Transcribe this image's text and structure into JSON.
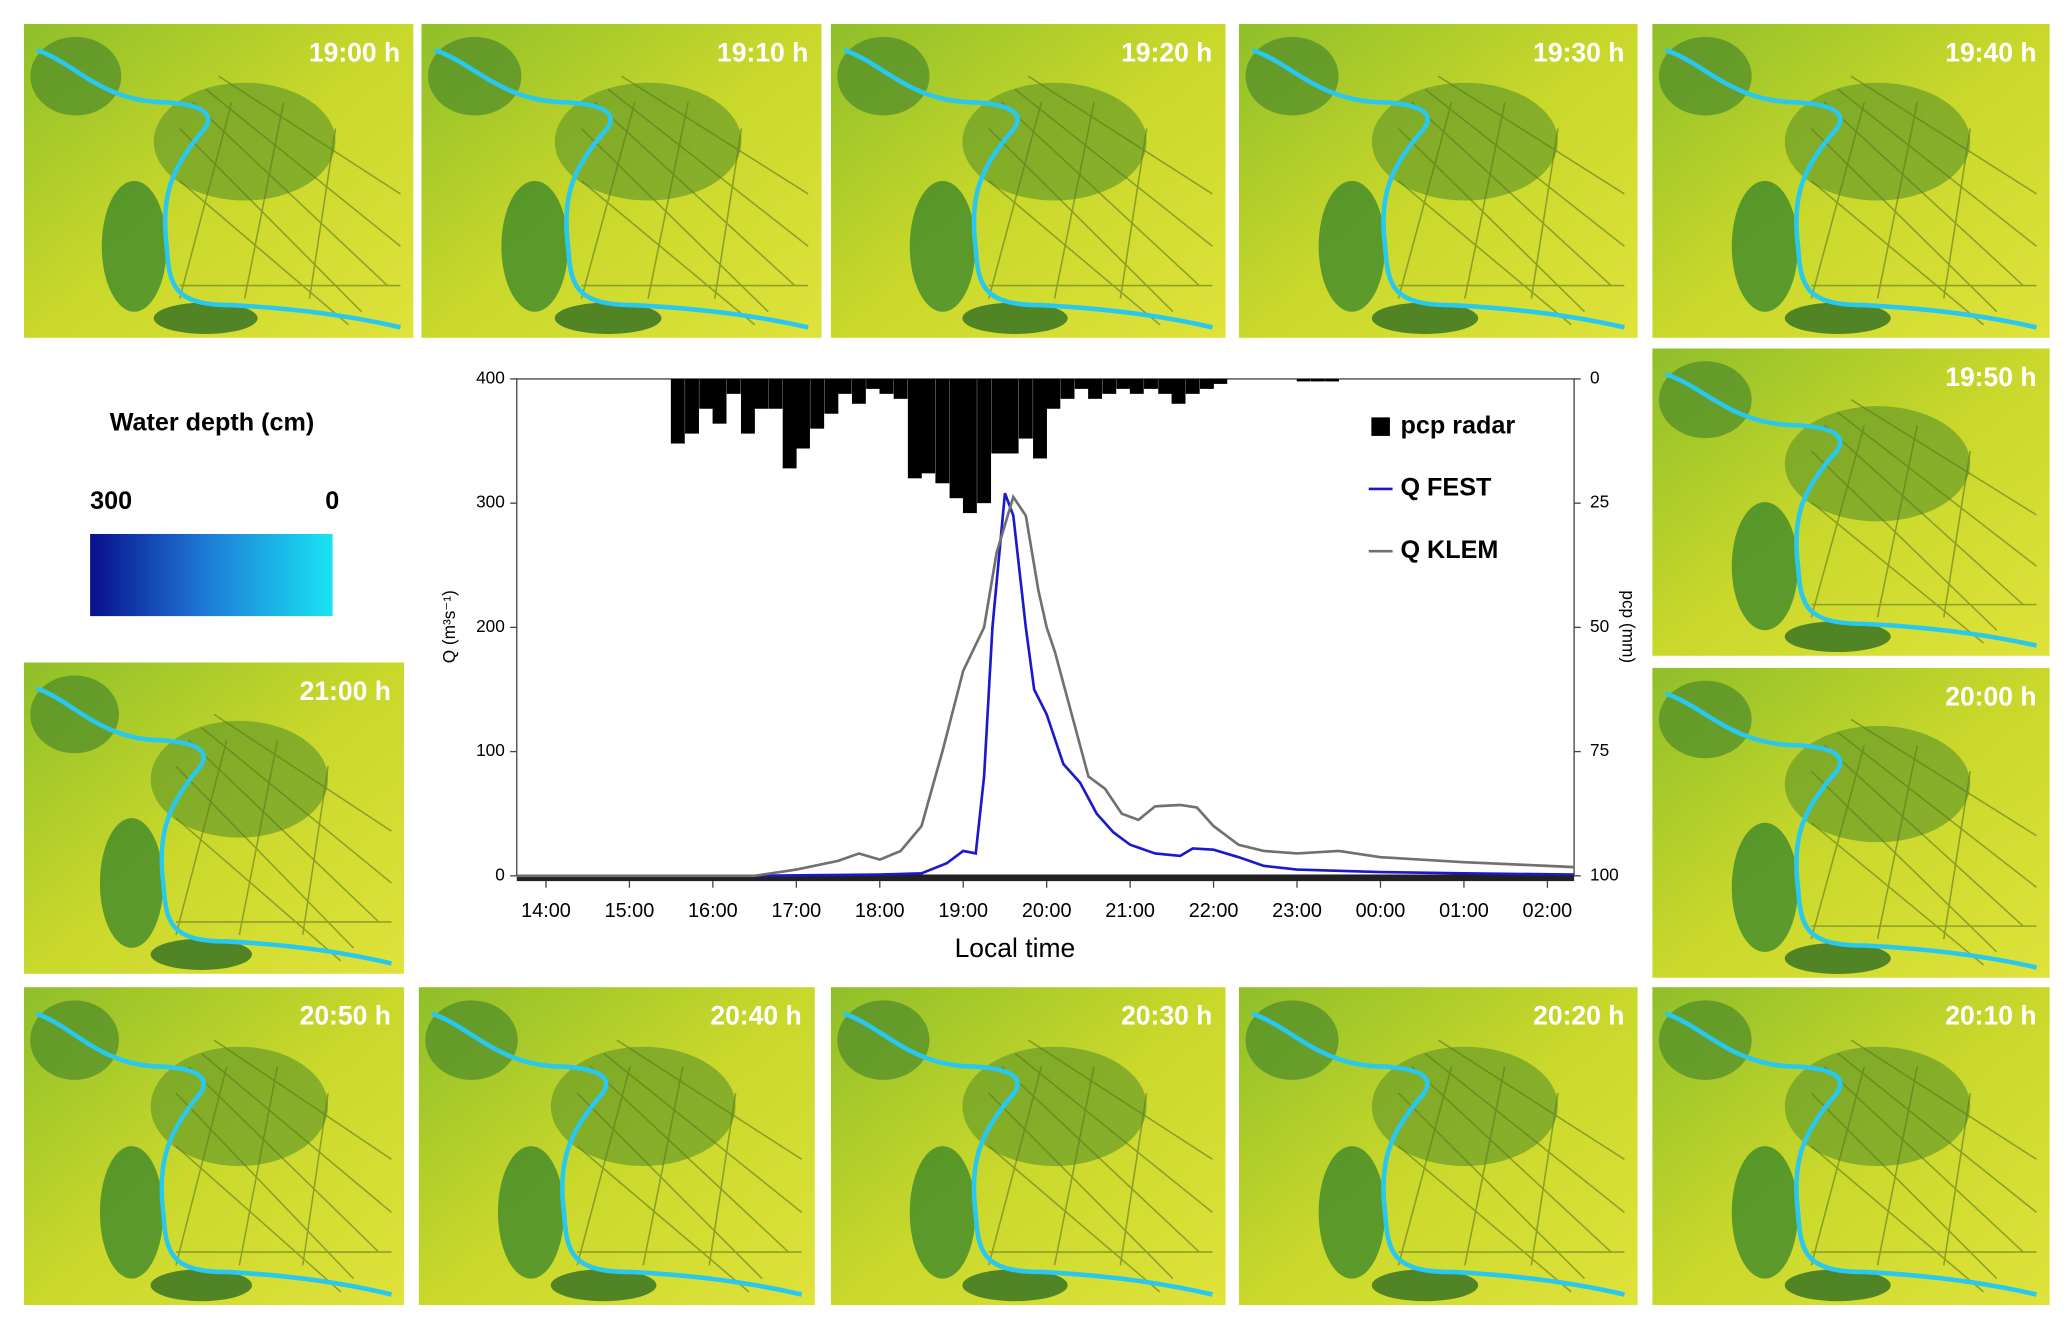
{
  "panels": [
    {
      "label": "19:00 h"
    },
    {
      "label": "19:10 h"
    },
    {
      "label": "19:20 h"
    },
    {
      "label": "19:30 h"
    },
    {
      "label": "19:40 h"
    },
    {
      "label": "19:50 h"
    },
    {
      "label": "20:00 h"
    },
    {
      "label": "20:10 h"
    },
    {
      "label": "20:20 h"
    },
    {
      "label": "20:30 h"
    },
    {
      "label": "20:40 h"
    },
    {
      "label": "20:50 h"
    },
    {
      "label": "21:00 h"
    }
  ],
  "colorbar": {
    "title": "Water depth (cm)",
    "max": 300,
    "min": 0
  },
  "chart_data": {
    "type": "line",
    "x_label": "Local time",
    "y_label": "Q (m³s⁻¹)",
    "y2_label": "pcp (mm)",
    "xlim": [
      13.65,
      26.32
    ],
    "xticks": [
      {
        "value": 14,
        "label": "14:00"
      },
      {
        "value": 15,
        "label": "15:00"
      },
      {
        "value": 16,
        "label": "16:00"
      },
      {
        "value": 17,
        "label": "17:00"
      },
      {
        "value": 18,
        "label": "18:00"
      },
      {
        "value": 19,
        "label": "19:00"
      },
      {
        "value": 20,
        "label": "20:00"
      },
      {
        "value": 21,
        "label": "21:00"
      },
      {
        "value": 22,
        "label": "22:00"
      },
      {
        "value": 23,
        "label": "23:00"
      },
      {
        "value": 24,
        "label": "00:00"
      },
      {
        "value": 25,
        "label": "01:00"
      },
      {
        "value": 26,
        "label": "02:00"
      }
    ],
    "ylim": [
      0,
      400
    ],
    "yticks": [
      0,
      100,
      200,
      300,
      400
    ],
    "y2lim": [
      100,
      0
    ],
    "y2ticks": [
      0,
      25,
      50,
      75,
      100
    ],
    "legend": "upper right",
    "series": [
      {
        "name": "pcp radar",
        "type": "bar",
        "axis": "y2",
        "color": "#000000",
        "x": [
          15.58,
          15.75,
          15.92,
          16.08,
          16.25,
          16.42,
          16.58,
          16.75,
          16.92,
          17.08,
          17.25,
          17.42,
          17.58,
          17.75,
          17.92,
          18.08,
          18.25,
          18.42,
          18.58,
          18.75,
          18.92,
          19.08,
          19.25,
          19.42,
          19.58,
          19.75,
          19.92,
          20.08,
          20.25,
          20.42,
          20.58,
          20.75,
          20.92,
          21.08,
          21.25,
          21.42,
          21.58,
          21.75,
          21.92,
          22.08,
          23.08,
          23.25,
          23.42
        ],
        "values": [
          13,
          11,
          6,
          9,
          3,
          11,
          6,
          6,
          18,
          14,
          10,
          7,
          3,
          5,
          2,
          3,
          4,
          20,
          19,
          21,
          24,
          27,
          25,
          15,
          15,
          12,
          16,
          6,
          4,
          2,
          4,
          3,
          2,
          3,
          2,
          3,
          5,
          3,
          2,
          1,
          0.5,
          0.5,
          0.5
        ]
      },
      {
        "name": "Q FEST",
        "type": "line",
        "color": "#1a1acc",
        "x": [
          13.65,
          16.5,
          18.0,
          18.5,
          18.8,
          19.0,
          19.15,
          19.25,
          19.35,
          19.5,
          19.6,
          19.75,
          19.85,
          20.0,
          20.2,
          20.4,
          20.6,
          20.8,
          21.0,
          21.3,
          21.6,
          21.75,
          22.0,
          22.3,
          22.6,
          23.0,
          24.0,
          25.0,
          26.32
        ],
        "values": [
          0,
          0,
          1,
          2,
          10,
          20,
          18,
          80,
          200,
          308,
          290,
          200,
          150,
          130,
          90,
          75,
          50,
          35,
          25,
          18,
          16,
          22,
          21,
          15,
          8,
          5,
          3,
          2,
          1
        ]
      },
      {
        "name": "Q KLEM",
        "type": "line",
        "color": "#707070",
        "x": [
          13.65,
          16.5,
          17.0,
          17.5,
          17.75,
          18.0,
          18.25,
          18.5,
          18.75,
          19.0,
          19.25,
          19.4,
          19.6,
          19.75,
          19.9,
          20.0,
          20.1,
          20.3,
          20.5,
          20.7,
          20.9,
          21.1,
          21.3,
          21.6,
          21.8,
          22.0,
          22.3,
          22.6,
          23.0,
          23.5,
          24.0,
          25.0,
          26.0,
          26.32
        ],
        "values": [
          0,
          0,
          5,
          12,
          18,
          13,
          20,
          40,
          100,
          165,
          200,
          260,
          305,
          290,
          230,
          200,
          180,
          130,
          80,
          70,
          50,
          45,
          56,
          57,
          55,
          40,
          25,
          20,
          18,
          20,
          15,
          11,
          8,
          7
        ]
      }
    ]
  }
}
